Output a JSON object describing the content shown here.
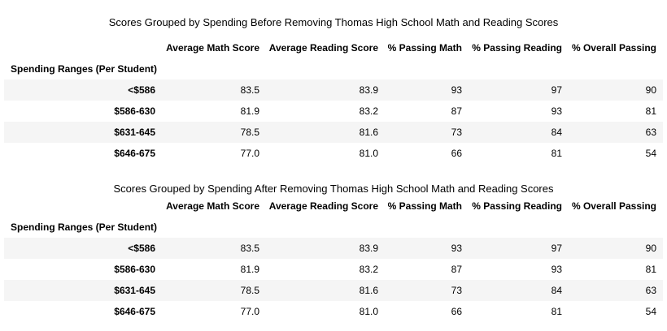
{
  "tables": [
    {
      "title": "Scores Grouped by Spending Before Removing Thomas High School Math and Reading Scores",
      "columns": [
        "Average Math Score",
        "Average Reading Score",
        "% Passing Math",
        "% Passing Reading",
        "% Overall Passing"
      ],
      "index_name": "Spending Ranges (Per Student)",
      "rows": [
        {
          "index": "<$586",
          "cells": [
            "83.5",
            "83.9",
            "93",
            "97",
            "90"
          ]
        },
        {
          "index": "$586-630",
          "cells": [
            "81.9",
            "83.2",
            "87",
            "93",
            "81"
          ]
        },
        {
          "index": "$631-645",
          "cells": [
            "78.5",
            "81.6",
            "73",
            "84",
            "63"
          ]
        },
        {
          "index": "$646-675",
          "cells": [
            "77.0",
            "81.0",
            "66",
            "81",
            "54"
          ]
        }
      ]
    },
    {
      "title": "Scores Grouped by Spending After Removing Thomas High School Math and Reading Scores",
      "columns": [
        "Average Math Score",
        "Average Reading Score",
        "% Passing Math",
        "% Passing Reading",
        "% Overall Passing"
      ],
      "index_name": "Spending Ranges (Per Student)",
      "rows": [
        {
          "index": "<$586",
          "cells": [
            "83.5",
            "83.9",
            "93",
            "97",
            "90"
          ]
        },
        {
          "index": "$586-630",
          "cells": [
            "81.9",
            "83.2",
            "87",
            "93",
            "81"
          ]
        },
        {
          "index": "$631-645",
          "cells": [
            "78.5",
            "81.6",
            "73",
            "84",
            "63"
          ]
        },
        {
          "index": "$646-675",
          "cells": [
            "77.0",
            "81.0",
            "66",
            "81",
            "54"
          ]
        }
      ]
    }
  ]
}
